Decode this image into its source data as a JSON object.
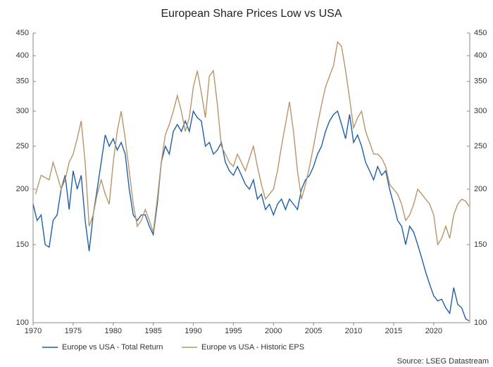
{
  "chart_data": {
    "type": "line",
    "title": "European Share Prices Low vs USA",
    "source": "Source: LSEG Datastream",
    "log_y": true,
    "grid": false,
    "legend": "bottom",
    "xlim": [
      1970,
      2024.5
    ],
    "xticks": [
      1970,
      1975,
      1980,
      1985,
      1990,
      1995,
      2000,
      2005,
      2010,
      2015,
      2020
    ],
    "ylim": [
      100,
      450
    ],
    "yticks": [
      100,
      150,
      200,
      250,
      300,
      350,
      400,
      450
    ],
    "y2lim": [
      100,
      450
    ],
    "y2ticks": [
      100,
      150,
      200,
      250,
      300,
      350,
      400,
      450
    ],
    "series": [
      {
        "name": "Europe vs USA - Total Return",
        "color": "#1f5fa8",
        "x": [
          1970,
          1970.5,
          1971,
          1971.5,
          1972,
          1972.5,
          1973,
          1973.5,
          1974,
          1974.5,
          1975,
          1975.5,
          1976,
          1976.5,
          1977,
          1977.5,
          1978,
          1978.5,
          1979,
          1979.5,
          1980,
          1980.5,
          1981,
          1981.5,
          1982,
          1982.5,
          1983,
          1983.5,
          1984,
          1984.5,
          1985,
          1985.5,
          1986,
          1986.5,
          1987,
          1987.5,
          1988,
          1988.5,
          1989,
          1989.5,
          1990,
          1990.5,
          1991,
          1991.5,
          1992,
          1992.5,
          1993,
          1993.5,
          1994,
          1994.5,
          1995,
          1995.5,
          1996,
          1996.5,
          1997,
          1997.5,
          1998,
          1998.5,
          1999,
          1999.5,
          2000,
          2000.5,
          2001,
          2001.5,
          2002,
          2002.5,
          2003,
          2003.5,
          2004,
          2004.5,
          2005,
          2005.5,
          2006,
          2006.5,
          2007,
          2007.5,
          2008,
          2008.5,
          2009,
          2009.5,
          2010,
          2010.5,
          2011,
          2011.5,
          2012,
          2012.5,
          2013,
          2013.5,
          2014,
          2014.5,
          2015,
          2015.5,
          2016,
          2016.5,
          2017,
          2017.5,
          2018,
          2018.5,
          2019,
          2019.5,
          2020,
          2020.5,
          2021,
          2021.5,
          2022,
          2022.5,
          2023,
          2023.5,
          2024,
          2024.4
        ],
        "values": [
          185,
          170,
          175,
          150,
          148,
          170,
          175,
          200,
          215,
          180,
          220,
          200,
          215,
          170,
          145,
          175,
          200,
          230,
          265,
          250,
          260,
          245,
          255,
          240,
          200,
          175,
          170,
          175,
          175,
          165,
          158,
          185,
          230,
          250,
          240,
          270,
          280,
          270,
          285,
          270,
          300,
          290,
          285,
          250,
          255,
          240,
          245,
          255,
          230,
          220,
          215,
          225,
          215,
          205,
          200,
          210,
          190,
          195,
          180,
          185,
          175,
          185,
          190,
          180,
          190,
          185,
          180,
          200,
          210,
          215,
          225,
          240,
          250,
          270,
          285,
          295,
          300,
          280,
          260,
          295,
          255,
          265,
          250,
          230,
          220,
          210,
          225,
          215,
          220,
          200,
          185,
          170,
          165,
          150,
          165,
          160,
          150,
          140,
          130,
          122,
          115,
          112,
          113,
          108,
          105,
          120,
          110,
          108,
          102,
          101
        ]
      },
      {
        "name": "Europe vs USA - Historic EPS",
        "color": "#b8956a",
        "x": [
          1970.3,
          1971,
          1972,
          1972.5,
          1973,
          1973.5,
          1974,
          1974.5,
          1975,
          1975.5,
          1976,
          1976.5,
          1977,
          1977.5,
          1978,
          1978.5,
          1979,
          1979.5,
          1980,
          1980.5,
          1981,
          1981.5,
          1982,
          1982.5,
          1983,
          1983.5,
          1984,
          1984.5,
          1985,
          1985.5,
          1986,
          1986.5,
          1987,
          1987.5,
          1988,
          1988.5,
          1989,
          1989.5,
          1990,
          1990.5,
          1991,
          1991.5,
          1992,
          1992.5,
          1993,
          1993.5,
          1994,
          1994.5,
          1995,
          1995.5,
          1996,
          1996.5,
          1997,
          1997.5,
          1998,
          1998.5,
          1999,
          1999.5,
          2000,
          2000.5,
          2001,
          2001.5,
          2002,
          2002.5,
          2003,
          2003.5,
          2004,
          2004.5,
          2005,
          2005.5,
          2006,
          2006.5,
          2007,
          2007.5,
          2008,
          2008.5,
          2009,
          2009.5,
          2010,
          2010.5,
          2011,
          2011.5,
          2012,
          2012.5,
          2013,
          2013.5,
          2014,
          2014.5,
          2015,
          2015.5,
          2016,
          2016.5,
          2017,
          2017.5,
          2018,
          2018.5,
          2019,
          2019.5,
          2020,
          2020.5,
          2021,
          2021.5,
          2022,
          2022.5,
          2023,
          2023.5,
          2024,
          2024.4
        ],
        "values": [
          195,
          215,
          210,
          230,
          215,
          200,
          210,
          230,
          240,
          260,
          285,
          230,
          165,
          175,
          195,
          210,
          195,
          185,
          230,
          270,
          300,
          260,
          220,
          185,
          165,
          170,
          180,
          170,
          160,
          190,
          230,
          265,
          280,
          300,
          325,
          300,
          270,
          290,
          340,
          370,
          330,
          290,
          360,
          370,
          310,
          250,
          240,
          230,
          225,
          240,
          230,
          220,
          235,
          250,
          225,
          205,
          190,
          195,
          200,
          220,
          250,
          280,
          315,
          270,
          220,
          190,
          205,
          225,
          250,
          280,
          310,
          340,
          360,
          380,
          430,
          420,
          370,
          320,
          275,
          290,
          300,
          270,
          255,
          240,
          240,
          235,
          225,
          205,
          200,
          195,
          185,
          170,
          175,
          185,
          200,
          195,
          190,
          185,
          175,
          150,
          155,
          165,
          155,
          175,
          185,
          190,
          188,
          183
        ]
      }
    ]
  }
}
